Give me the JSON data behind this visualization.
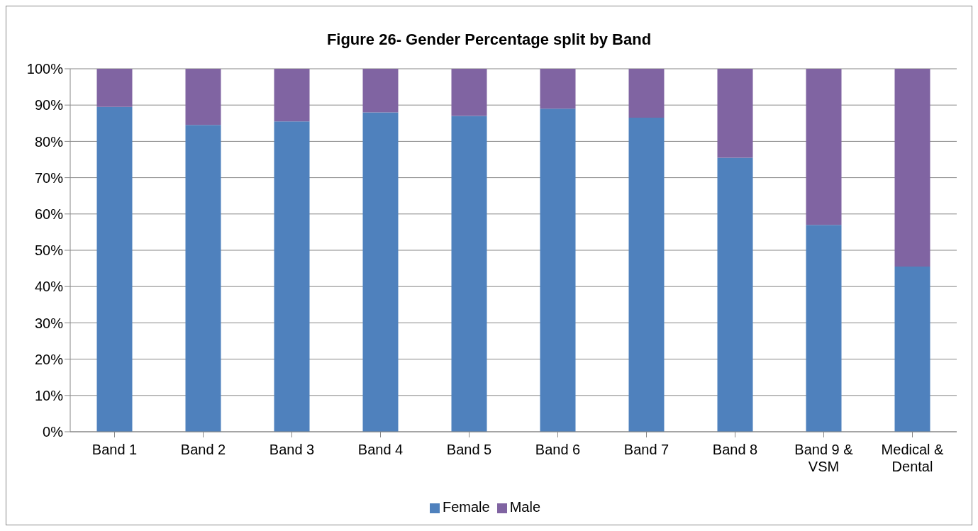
{
  "chart_data": {
    "type": "bar",
    "title": "Figure 26- Gender Percentage split by Band",
    "categories": [
      "Band 1",
      "Band 2",
      "Band 3",
      "Band 4",
      "Band 5",
      "Band 6",
      "Band 7",
      "Band 8",
      "Band 9 & VSM",
      "Medical & Dental"
    ],
    "series": [
      {
        "name": "Female",
        "color": "#4f81bd",
        "values": [
          89.5,
          84.5,
          85.5,
          88,
          87,
          89,
          86.5,
          75.5,
          57,
          45.5
        ]
      },
      {
        "name": "Male",
        "color": "#8064a2",
        "values": [
          10.5,
          15.5,
          14.5,
          12,
          13,
          11,
          13.5,
          24.5,
          43,
          54.5
        ]
      }
    ],
    "stacked": true,
    "ylim": [
      0,
      100
    ],
    "yticks": [
      {
        "value": 0,
        "label": "0%"
      },
      {
        "value": 10,
        "label": "10%"
      },
      {
        "value": 20,
        "label": "20%"
      },
      {
        "value": 30,
        "label": "30%"
      },
      {
        "value": 40,
        "label": "40%"
      },
      {
        "value": 50,
        "label": "50%"
      },
      {
        "value": 60,
        "label": "60%"
      },
      {
        "value": 70,
        "label": "70%"
      },
      {
        "value": 80,
        "label": "80%"
      },
      {
        "value": 90,
        "label": "90%"
      },
      {
        "value": 100,
        "label": "100%"
      }
    ],
    "grid": "y",
    "legend": "bottom"
  }
}
